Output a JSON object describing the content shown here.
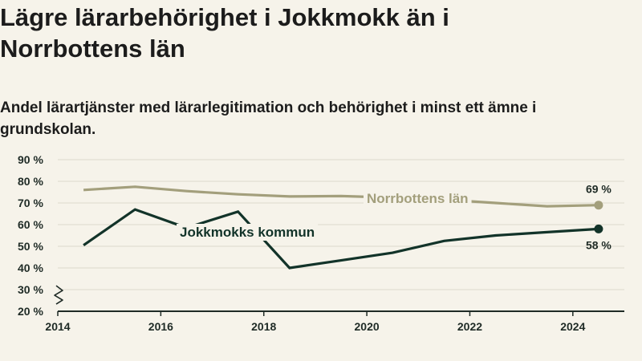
{
  "title": "Lägre lärarbehörighet i Jokkmokk än i Norrbottens län",
  "subtitle": "Andel lärartjänster med lärarlegitimation och behörighet i minst ett ämne i grundskolan.",
  "colors": {
    "background": "#f6f3ea",
    "norrbotten": "#a39f7c",
    "jokkmokk": "#123329",
    "grid": "#dcd8cc",
    "axis": "#1f2b26"
  },
  "chart_data": {
    "type": "line",
    "ylim": [
      20,
      90
    ],
    "y_ticks": [
      20,
      30,
      40,
      50,
      60,
      70,
      80,
      90
    ],
    "y_tick_labels": [
      "20 %",
      "30 %",
      "40 %",
      "50 %",
      "60 %",
      "70 %",
      "80 %",
      "90 %"
    ],
    "y_axis_break": true,
    "xlim": [
      2014,
      2025
    ],
    "x_ticks": [
      2014,
      2016,
      2018,
      2020,
      2022,
      2024
    ],
    "x_tick_labels": [
      "2014",
      "2016",
      "2018",
      "2020",
      "2022",
      "2024"
    ],
    "grid": true,
    "legend": "direct labels on lines",
    "series": [
      {
        "name": "Norrbottens län",
        "color": "#a39f7c",
        "x": [
          2014.5,
          2015.5,
          2016.5,
          2017.5,
          2018.5,
          2019.5,
          2020.5,
          2021.5,
          2022.5,
          2023.5,
          2024.5
        ],
        "y": [
          76,
          77.5,
          75.5,
          74,
          73,
          73.2,
          72.5,
          71.5,
          70,
          68.5,
          69
        ],
        "end_label": "69 %"
      },
      {
        "name": "Jokkmokks kommun",
        "color": "#123329",
        "x": [
          2014.5,
          2015.5,
          2016.5,
          2017.5,
          2018.5,
          2019.5,
          2020.5,
          2021.5,
          2022.5,
          2023.5,
          2024.5
        ],
        "y": [
          50.5,
          67,
          58.5,
          66,
          40,
          43.5,
          47,
          52.5,
          55,
          56.5,
          58
        ],
        "end_label": "58 %"
      }
    ]
  }
}
